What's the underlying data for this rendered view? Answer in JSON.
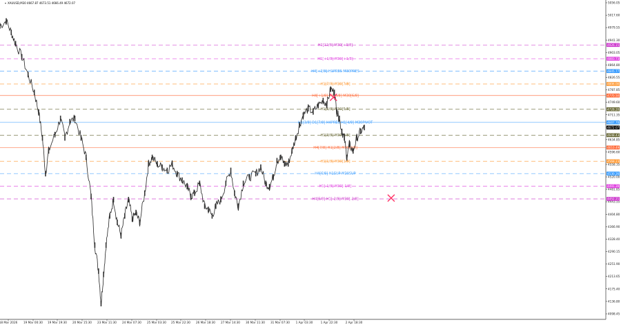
{
  "header": {
    "symbol_line": "XAUUSD,M30  4667.87 4673.51 4666.49 4672.07"
  },
  "chart_data": {
    "type": "candlestick",
    "symbol": "XAUUSD",
    "timeframe": "M30",
    "ohlc_current": {
      "open": 4667.87,
      "high": 4673.51,
      "low": 4666.49,
      "close": 4672.07
    },
    "grid": false,
    "ylim": [
      4098.45,
      5056.05
    ],
    "y_ticks": [
      "5056.05",
      "5017.60",
      "4979.55",
      "4941.30",
      "4903.05",
      "4864.80",
      "4826.55",
      "4787.85",
      "4749.60",
      "4711.35",
      "4673.10",
      "4634.85",
      "4596.60",
      "4558.35",
      "4520.00",
      "4481.85",
      "4443.55",
      "4404.80",
      "4366.90",
      "4328.40",
      "4290.15",
      "4251.90",
      "4213.65",
      "4175.40",
      "4136.80",
      "4098.45"
    ],
    "x_ticks": [
      "18 Mar 2026",
      "19 Mar 00:30",
      "19 Mar 19:30",
      "20 Mar 15:30",
      "23 Mar 11:30",
      "24 Mar 07:30",
      "25 Mar 03:30",
      "25 Mar 22:30",
      "26 Mar 18:30",
      "27 Mar 14:30",
      "30 Mar 11:30",
      "31 Mar 07:30",
      "1 Apr 03:30",
      "1 Apr 22:30",
      "2 Apr 18:30"
    ],
    "levels": [
      {
        "price": 4926.15,
        "label": "H1[12/8] M30[+3/8]",
        "tag": "4926.15",
        "color": "#cc33cc",
        "style": "dash"
      },
      {
        "price": 4883.73,
        "label": "H1[+1/8] M30[+1/8]",
        "tag": "4883.73",
        "color": "#e040e0",
        "style": "dash"
      },
      {
        "price": 4845.77,
        "label": "H4[+2/8] H1PRES M30PRES",
        "tag": "4845.77",
        "color": "#3399ff",
        "style": "dash"
      },
      {
        "price": 4806.0,
        "label": "H1[7/8] M30[7/8]",
        "tag": "4806.00",
        "color": "#ff9933",
        "style": "dash"
      },
      {
        "price": 4770.5,
        "label": "H4[+1/8] H1[6/8] M30[6/8]",
        "tag": "4770.50",
        "color": "#ff6633",
        "style": "solid"
      },
      {
        "price": 4728.2,
        "label": "H1[5/8] M30[5/8]",
        "tag": "4728.20",
        "color": "#666633",
        "style": "dash"
      },
      {
        "price": 4687.78,
        "label": "H1[3/8] D1[7/8] H4PRES H1[4/8] M30PIVOT",
        "tag": "4687.78",
        "color": "#3399ff",
        "style": "solid"
      },
      {
        "price": 4672.07,
        "label": "",
        "tag": "4672.07",
        "color": "#000000",
        "style": "none"
      },
      {
        "price": 4648.43,
        "label": "H1[3/8] M30[3/8]",
        "tag": "4648.43",
        "color": "#666633",
        "style": "dash"
      },
      {
        "price": 4610.49,
        "label": "H4[7/8] H1[2/8] M30[2/8]",
        "tag": "4610.49",
        "color": "#ff6633",
        "style": "solid"
      },
      {
        "price": 4568.23,
        "label": "H1[1/8] M30[1/8]",
        "tag": "4568.23",
        "color": "#ff9933",
        "style": "dash"
      },
      {
        "price": 4530.26,
        "label": "H4[6/8] H1SUP M30SUP",
        "tag": "4530.26",
        "color": "#3399ff",
        "style": "dash"
      },
      {
        "price": 4491.39,
        "label": "H1[-1/8] M30[-1/8]",
        "tag": "4491.39",
        "color": "#e040e0",
        "style": "dash"
      },
      {
        "price": 4452.21,
        "label": "H4[5/8] H1[-2/8] M30[-2/8]",
        "tag": "4452.21",
        "color": "#cc33cc",
        "style": "dash"
      }
    ],
    "markers": [
      {
        "kind": "cross",
        "color": "#ff3366",
        "x_index": 0.5345,
        "price": 4765
      },
      {
        "kind": "cross",
        "color": "#ff3366",
        "x_index": 0.627,
        "price": 4455
      }
    ],
    "price_path": [
      [
        0.0,
        4985
      ],
      [
        0.01,
        5000
      ],
      [
        0.018,
        4965
      ],
      [
        0.025,
        4930
      ],
      [
        0.035,
        4890
      ],
      [
        0.045,
        4835
      ],
      [
        0.055,
        4780
      ],
      [
        0.062,
        4720
      ],
      [
        0.068,
        4640
      ],
      [
        0.073,
        4530
      ],
      [
        0.078,
        4600
      ],
      [
        0.088,
        4650
      ],
      [
        0.097,
        4700
      ],
      [
        0.104,
        4640
      ],
      [
        0.112,
        4690
      ],
      [
        0.12,
        4700
      ],
      [
        0.13,
        4640
      ],
      [
        0.138,
        4580
      ],
      [
        0.146,
        4460
      ],
      [
        0.152,
        4310
      ],
      [
        0.158,
        4230
      ],
      [
        0.162,
        4130
      ],
      [
        0.166,
        4220
      ],
      [
        0.17,
        4310
      ],
      [
        0.176,
        4400
      ],
      [
        0.182,
        4450
      ],
      [
        0.188,
        4380
      ],
      [
        0.194,
        4340
      ],
      [
        0.2,
        4400
      ],
      [
        0.206,
        4450
      ],
      [
        0.212,
        4390
      ],
      [
        0.218,
        4410
      ],
      [
        0.224,
        4380
      ],
      [
        0.232,
        4470
      ],
      [
        0.238,
        4560
      ],
      [
        0.244,
        4580
      ],
      [
        0.252,
        4560
      ],
      [
        0.26,
        4550
      ],
      [
        0.268,
        4540
      ],
      [
        0.276,
        4560
      ],
      [
        0.284,
        4530
      ],
      [
        0.292,
        4510
      ],
      [
        0.3,
        4490
      ],
      [
        0.306,
        4460
      ],
      [
        0.312,
        4470
      ],
      [
        0.32,
        4500
      ],
      [
        0.328,
        4430
      ],
      [
        0.334,
        4420
      ],
      [
        0.34,
        4400
      ],
      [
        0.346,
        4430
      ],
      [
        0.354,
        4450
      ],
      [
        0.362,
        4500
      ],
      [
        0.37,
        4540
      ],
      [
        0.376,
        4470
      ],
      [
        0.382,
        4430
      ],
      [
        0.39,
        4500
      ],
      [
        0.4,
        4520
      ],
      [
        0.41,
        4530
      ],
      [
        0.418,
        4550
      ],
      [
        0.426,
        4500
      ],
      [
        0.432,
        4490
      ],
      [
        0.438,
        4520
      ],
      [
        0.444,
        4570
      ],
      [
        0.45,
        4580
      ],
      [
        0.456,
        4560
      ],
      [
        0.462,
        4560
      ],
      [
        0.468,
        4600
      ],
      [
        0.474,
        4640
      ],
      [
        0.48,
        4680
      ],
      [
        0.486,
        4710
      ],
      [
        0.494,
        4730
      ],
      [
        0.502,
        4720
      ],
      [
        0.51,
        4740
      ],
      [
        0.518,
        4755
      ],
      [
        0.524,
        4745
      ],
      [
        0.53,
        4790
      ],
      [
        0.536,
        4780
      ],
      [
        0.54,
        4720
      ],
      [
        0.544,
        4700
      ],
      [
        0.548,
        4660
      ],
      [
        0.552,
        4640
      ],
      [
        0.556,
        4580
      ],
      [
        0.56,
        4620
      ],
      [
        0.566,
        4600
      ],
      [
        0.572,
        4640
      ],
      [
        0.578,
        4660
      ],
      [
        0.584,
        4672
      ]
    ]
  }
}
